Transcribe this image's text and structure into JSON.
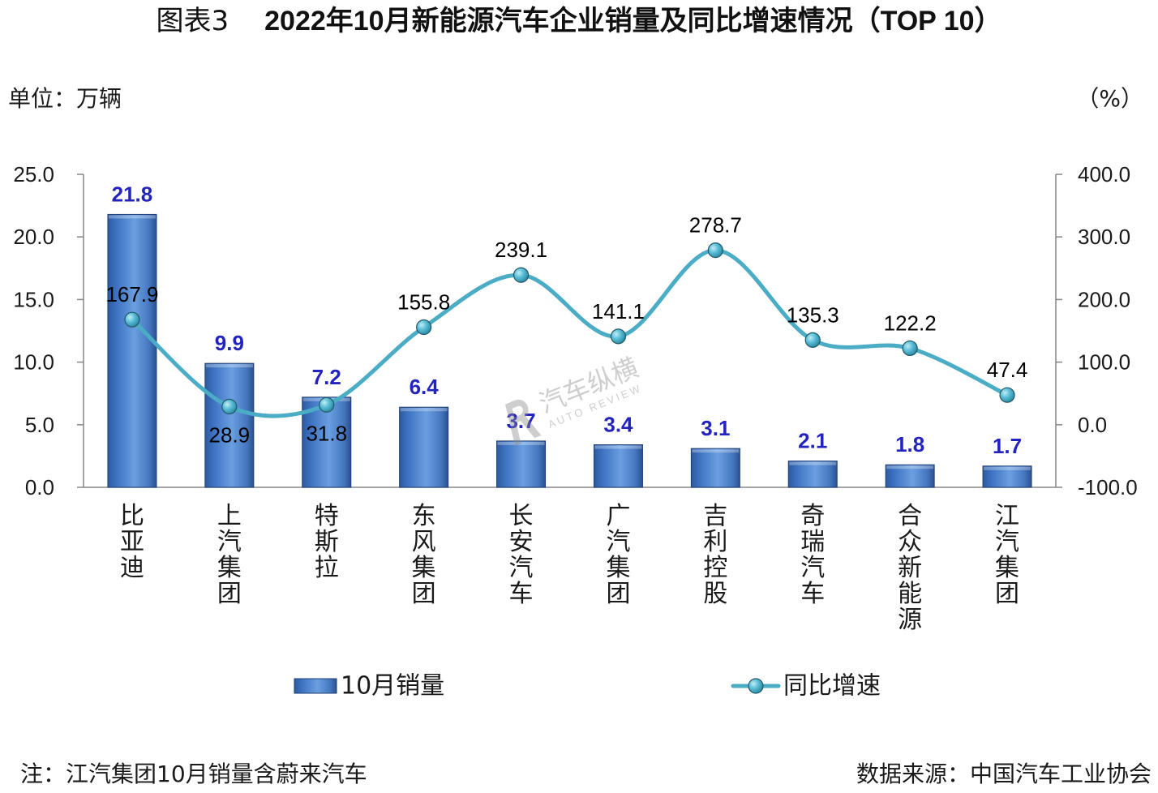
{
  "figure_label": "图表3",
  "chart_data": {
    "type": "bar",
    "title": "2022年10月新能源汽车企业销量及同比增速情况（TOP 10）",
    "categories": [
      "比亚迪",
      "上汽集团",
      "特斯拉",
      "东风集团",
      "长安汽车",
      "广汽集团",
      "吉利控股",
      "奇瑞汽车",
      "合众新能源",
      "江汽集团"
    ],
    "series": [
      {
        "name": "10月销量",
        "type": "bar",
        "axis": "left",
        "values": [
          21.8,
          9.9,
          7.2,
          6.4,
          3.7,
          3.4,
          3.1,
          2.1,
          1.8,
          1.7
        ]
      },
      {
        "name": "同比增速",
        "type": "line",
        "axis": "right",
        "smooth": true,
        "values": [
          167.9,
          28.9,
          31.8,
          155.8,
          239.1,
          141.1,
          278.7,
          135.3,
          122.2,
          47.4
        ]
      }
    ],
    "ylabel": "单位：万辆",
    "y2label": "（%）",
    "ylim": [
      0,
      25
    ],
    "y2lim": [
      -100,
      400
    ],
    "yticks": [
      "0.0",
      "5.0",
      "10.0",
      "15.0",
      "20.0",
      "25.0"
    ],
    "y2ticks": [
      "-100.0",
      "0.0",
      "100.0",
      "200.0",
      "300.0",
      "400.0"
    ],
    "grid": false,
    "legend": "bottom",
    "data_labels": true
  },
  "footer": {
    "note": "注：江汽集团10月销量含蔚来汽车",
    "source": "数据来源：中国汽车工业协会"
  },
  "watermark": {
    "text": "汽车纵横",
    "subtext": "AUTO REVIEW"
  },
  "colors": {
    "bar": "#4F81BD",
    "bar_edge": "#1F3F73",
    "line": "#4BACC6",
    "marker_edge": "#215968",
    "bar_label": "#2323C0",
    "line_label": "#000000",
    "axis": "#868686"
  }
}
